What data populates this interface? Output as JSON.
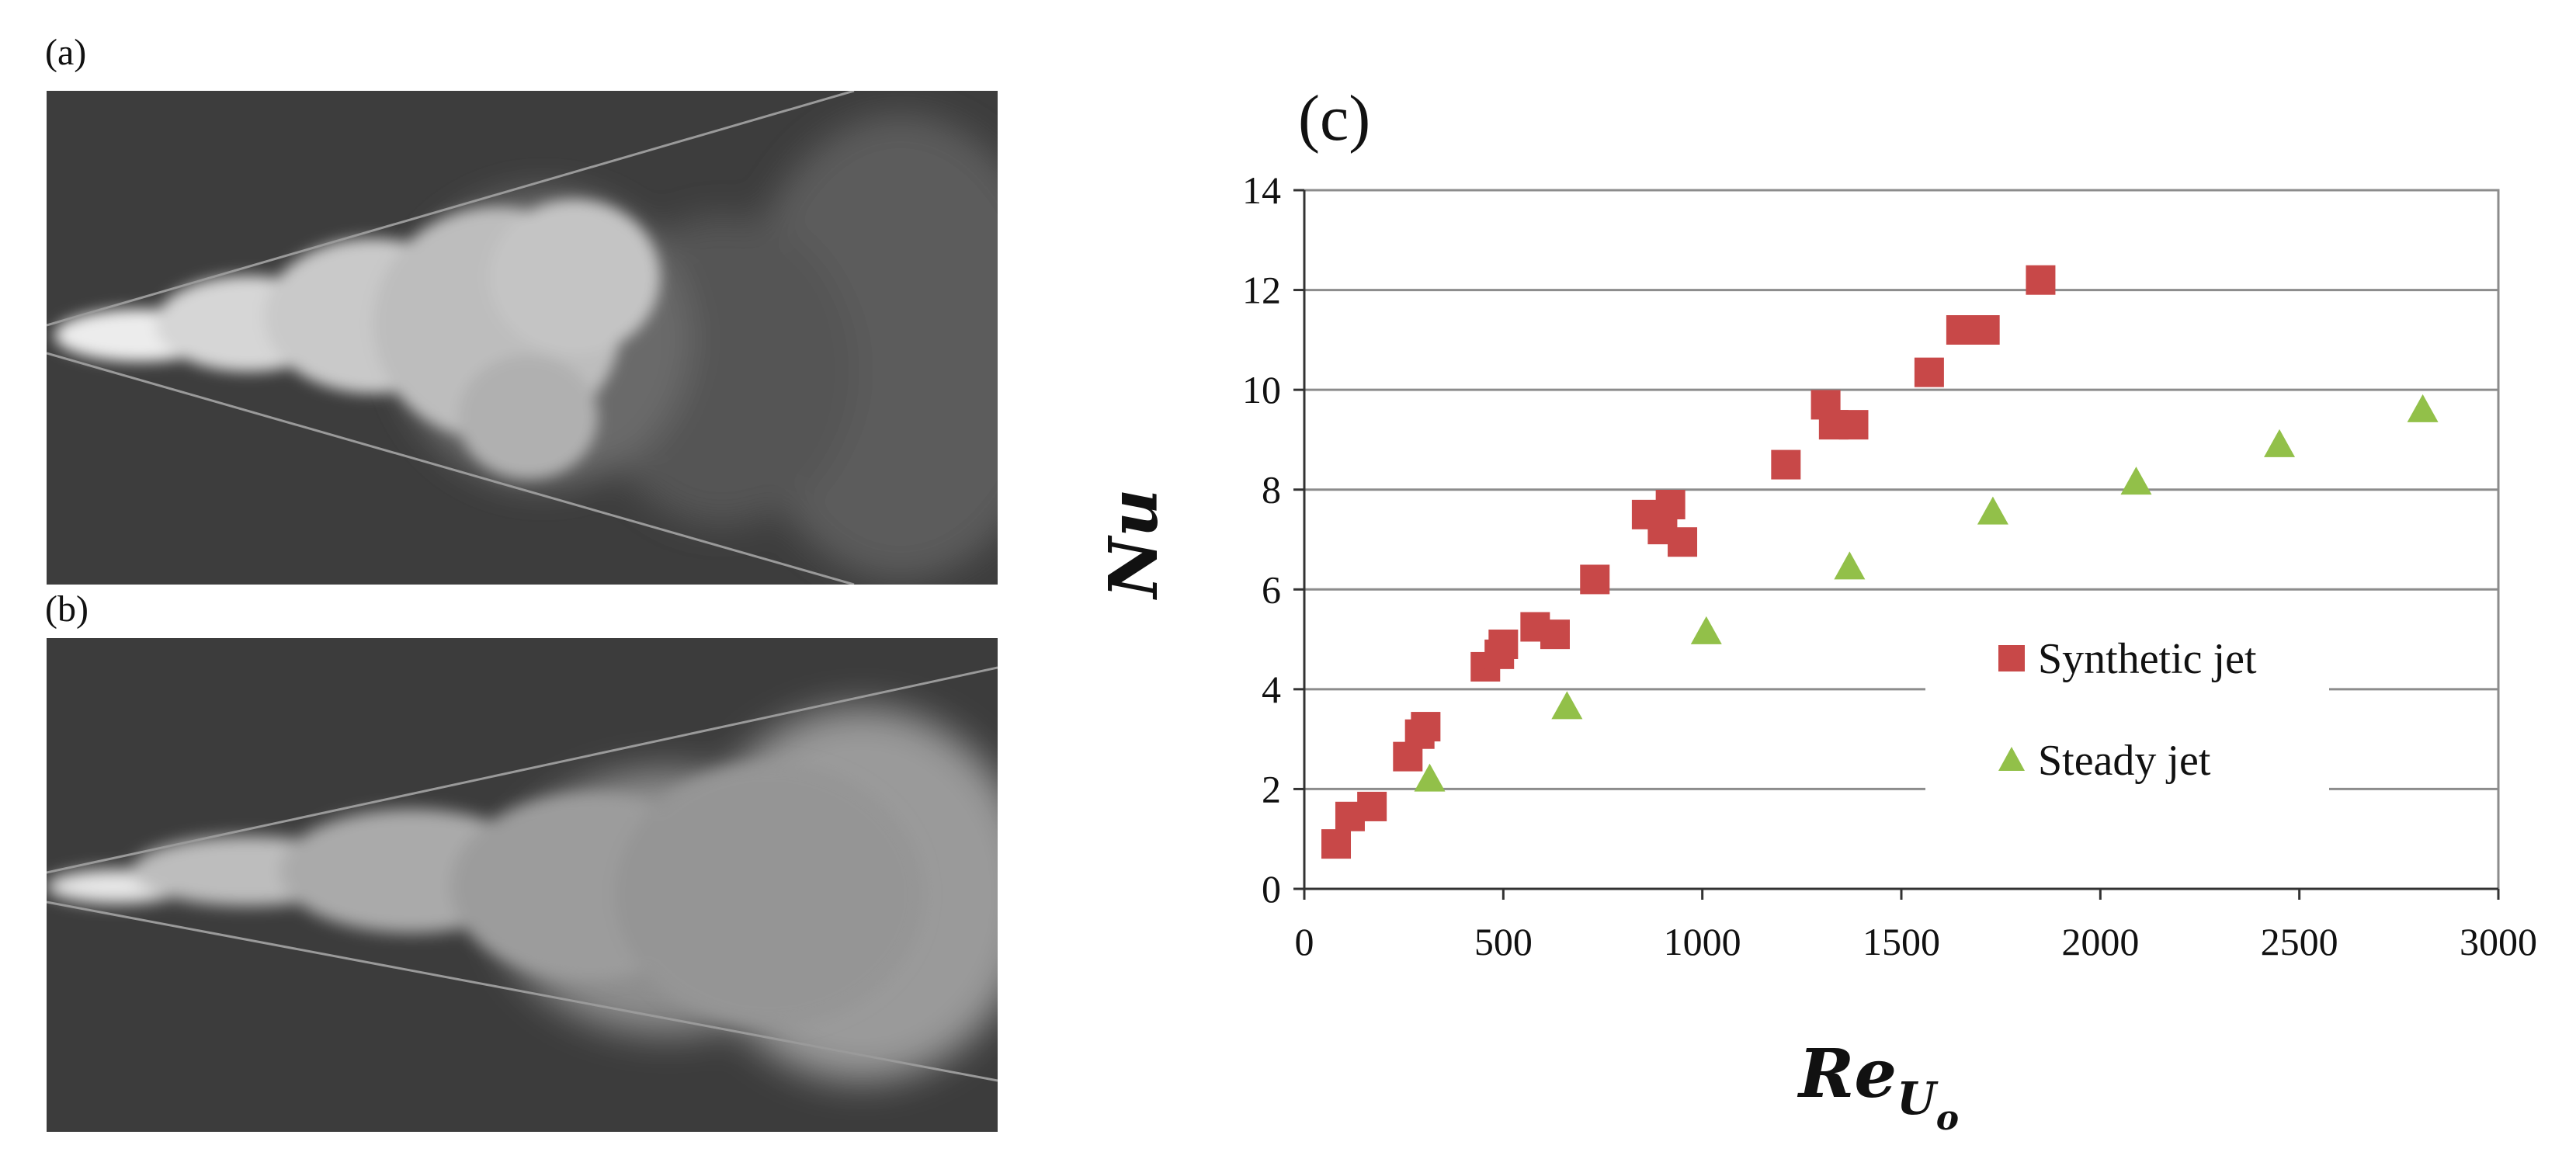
{
  "panels": {
    "a_label": "(a)",
    "b_label": "(b)",
    "c_label": "(c)"
  },
  "colors": {
    "synthetic": "#c84848",
    "steady": "#92c049",
    "photo_bg": "#3c3c3c",
    "smoke": "#d8d8d8"
  },
  "chart_data": {
    "type": "scatter",
    "xlabel_main": "Re",
    "xlabel_sub": "U",
    "xlabel_subsub": "o",
    "ylabel": "Nu",
    "xlim": [
      0,
      3000
    ],
    "ylim": [
      0,
      14
    ],
    "x_ticks": [
      0,
      500,
      1000,
      1500,
      2000,
      2500,
      3000
    ],
    "y_ticks": [
      0,
      2,
      4,
      6,
      8,
      10,
      12,
      14
    ],
    "grid": "horizontal",
    "legend_position": "center-right",
    "series": [
      {
        "name": "Synthetic jet",
        "marker": "square",
        "points": [
          [
            80,
            0.9
          ],
          [
            115,
            1.45
          ],
          [
            170,
            1.65
          ],
          [
            260,
            2.65
          ],
          [
            290,
            3.1
          ],
          [
            305,
            3.25
          ],
          [
            455,
            4.45
          ],
          [
            490,
            4.7
          ],
          [
            500,
            4.9
          ],
          [
            580,
            5.25
          ],
          [
            630,
            5.1
          ],
          [
            730,
            6.2
          ],
          [
            860,
            7.5
          ],
          [
            900,
            7.2
          ],
          [
            920,
            7.7
          ],
          [
            950,
            6.95
          ],
          [
            1210,
            8.5
          ],
          [
            1310,
            9.7
          ],
          [
            1330,
            9.3
          ],
          [
            1380,
            9.3
          ],
          [
            1570,
            10.35
          ],
          [
            1650,
            11.2
          ],
          [
            1710,
            11.2
          ],
          [
            1850,
            12.2
          ]
        ]
      },
      {
        "name": "Steady jet",
        "marker": "triangle",
        "points": [
          [
            315,
            2.2
          ],
          [
            660,
            3.65
          ],
          [
            1010,
            5.15
          ],
          [
            1370,
            6.45
          ],
          [
            1730,
            7.55
          ],
          [
            2090,
            8.15
          ],
          [
            2450,
            8.9
          ],
          [
            2810,
            9.6
          ]
        ]
      }
    ]
  }
}
